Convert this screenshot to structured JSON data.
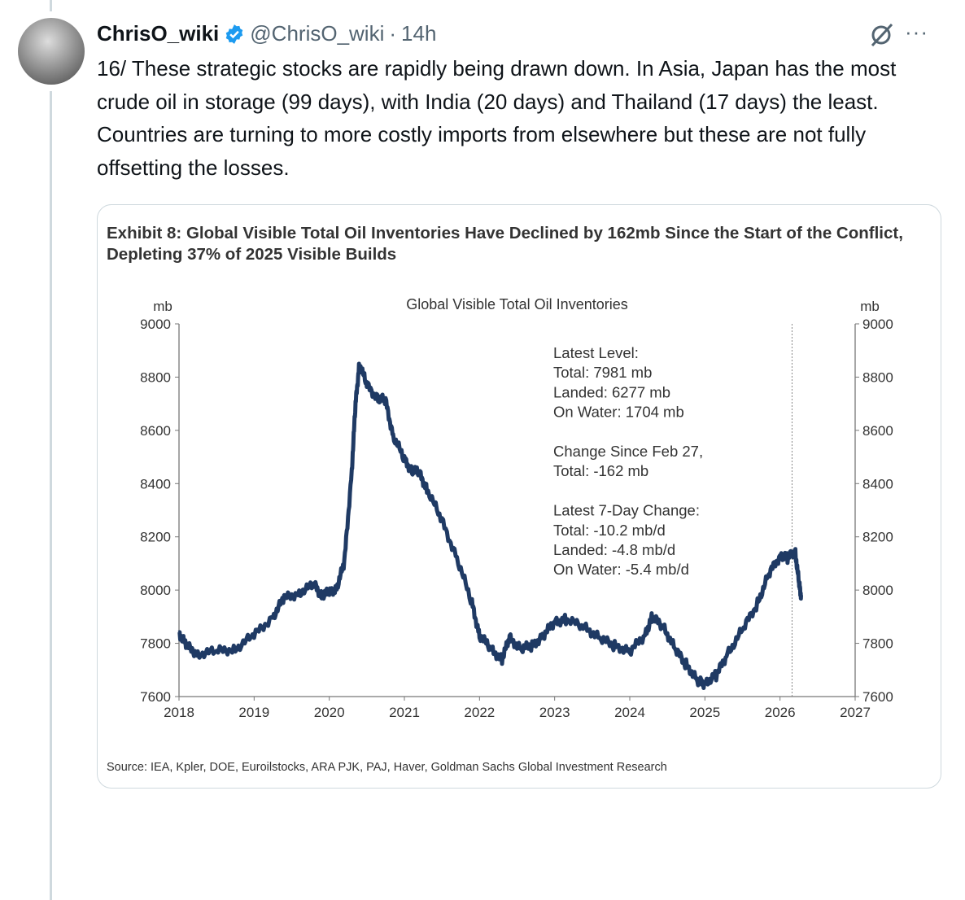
{
  "tweet": {
    "name": "ChrisO_wiki",
    "handle": "@ChrisO_wiki",
    "separator": "·",
    "time": "14h",
    "more": "···",
    "text": "16/ These strategic stocks are rapidly being drawn down. In Asia, Japan has the most crude oil in storage (99 days), with India (20 days) and Thailand (17 days) the least. Countries are turning to more costly imports from elsewhere but these are not fully offsetting the losses.",
    "accent": "#1d9bf0"
  },
  "exhibit": {
    "title": "Exhibit 8: Global Visible Total Oil Inventories Have Declined by 162mb Since the Start of the Conflict, Depleting 37% of 2025 Visible Builds",
    "source": "Source: IEA, Kpler, DOE, Euroilstocks, ARA PJK, PAJ, Haver, Goldman Sachs Global Investment Research"
  },
  "chart_data": {
    "type": "line",
    "title": "Global Visible Total Oil Inventories",
    "ylabel": "mb",
    "ylabel_right": "mb",
    "xlim": [
      2018,
      2027
    ],
    "ylim": [
      7600,
      9000
    ],
    "xticks": [
      "2018",
      "2019",
      "2020",
      "2021",
      "2022",
      "2023",
      "2024",
      "2025",
      "2026",
      "2027"
    ],
    "yticks": [
      "7600",
      "7800",
      "8000",
      "8200",
      "8400",
      "8600",
      "8800",
      "9000"
    ],
    "line_color": "#1f3a64",
    "marker_line_x": 2026.16,
    "annotations": [
      "Latest Level:",
      "Total: 7981 mb",
      "Landed: 6277 mb",
      "On Water: 1704 mb",
      "",
      "Change Since Feb 27,",
      "Total: -162 mb",
      "",
      "Latest 7-Day Change:",
      "Total: -10.2 mb/d",
      "Landed: -4.8 mb/d",
      "On Water: -5.4 mb/d"
    ],
    "series": [
      {
        "name": "Global Visible Total Oil Inventories",
        "x": [
          2018.0,
          2018.1,
          2018.25,
          2018.5,
          2018.75,
          2019.0,
          2019.25,
          2019.4,
          2019.6,
          2019.8,
          2019.9,
          2020.0,
          2020.1,
          2020.2,
          2020.3,
          2020.35,
          2020.4,
          2020.5,
          2020.65,
          2020.75,
          2020.85,
          2021.0,
          2021.1,
          2021.2,
          2021.3,
          2021.5,
          2021.7,
          2021.9,
          2022.0,
          2022.15,
          2022.3,
          2022.4,
          2022.55,
          2022.7,
          2022.85,
          2023.0,
          2023.15,
          2023.4,
          2023.6,
          2023.8,
          2024.0,
          2024.2,
          2024.3,
          2024.45,
          2024.6,
          2024.75,
          2024.9,
          2025.0,
          2025.15,
          2025.3,
          2025.5,
          2025.7,
          2025.85,
          2026.0,
          2026.1,
          2026.2,
          2026.25,
          2026.28
        ],
        "values": [
          7840,
          7790,
          7760,
          7770,
          7780,
          7830,
          7900,
          7970,
          7990,
          8020,
          7980,
          7990,
          8010,
          8100,
          8450,
          8700,
          8850,
          8770,
          8720,
          8710,
          8580,
          8490,
          8450,
          8440,
          8380,
          8260,
          8120,
          7950,
          7830,
          7780,
          7740,
          7820,
          7780,
          7790,
          7830,
          7880,
          7890,
          7860,
          7820,
          7790,
          7770,
          7830,
          7900,
          7860,
          7780,
          7720,
          7660,
          7650,
          7680,
          7760,
          7850,
          7950,
          8060,
          8130,
          8120,
          8150,
          8030,
          7981
        ]
      }
    ]
  }
}
